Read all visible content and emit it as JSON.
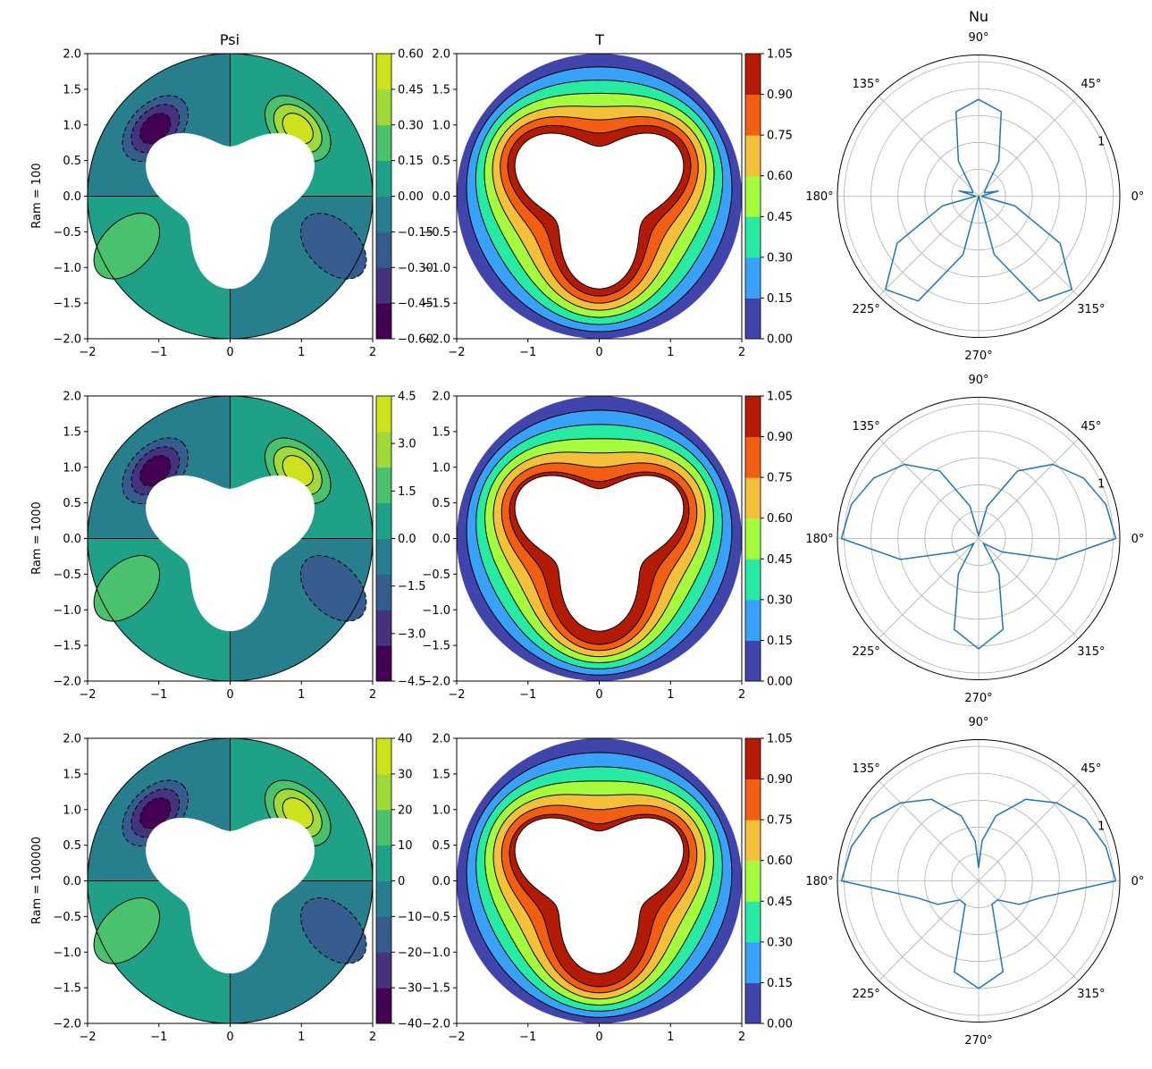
{
  "column_titles": {
    "psi": "Psi",
    "temperature": "T",
    "nusselt": "Nu"
  },
  "colors": {
    "viridis": [
      "#440154",
      "#46337e",
      "#365c8d",
      "#277f8e",
      "#1fa187",
      "#4ac16d",
      "#9fda3a",
      "#cde11d"
    ],
    "turbo": [
      "#4145ab",
      "#38a2fb",
      "#27eba3",
      "#a5fc3c",
      "#f4c03a",
      "#f35f12",
      "#b31b04"
    ],
    "polar_line": "#1f77b4",
    "grid": "#b0b0b0",
    "contour_line": "#000000"
  },
  "rows": [
    {
      "ylabel": "Ram = 100",
      "psi_colorbar_ticks": [
        "0.60",
        "0.45",
        "0.30",
        "0.15",
        "0.00",
        "−0.15",
        "−0.30",
        "−0.45",
        "−0.60"
      ],
      "t_colorbar_ticks": [
        "1.05",
        "0.90",
        "0.75",
        "0.60",
        "0.45",
        "0.30",
        "0.15",
        "0.00"
      ],
      "polar_radial_tick": "1"
    },
    {
      "ylabel": "Ram = 1000",
      "psi_colorbar_ticks": [
        "4.5",
        "3.0",
        "1.5",
        "0.0",
        "−1.5",
        "−3.0",
        "−4.5"
      ],
      "t_colorbar_ticks": [
        "1.05",
        "0.90",
        "0.75",
        "0.60",
        "0.45",
        "0.30",
        "0.15",
        "0.00"
      ],
      "polar_radial_tick": "1"
    },
    {
      "ylabel": "Ram = 100000",
      "psi_colorbar_ticks": [
        "40",
        "30",
        "20",
        "10",
        "0",
        "−10",
        "−20",
        "−30",
        "−40"
      ],
      "t_colorbar_ticks": [
        "1.05",
        "0.90",
        "0.75",
        "0.60",
        "0.45",
        "0.30",
        "0.15",
        "0.00"
      ],
      "polar_radial_tick": "1"
    }
  ],
  "cartesian_axes": {
    "x_ticks": [
      "−2",
      "−1",
      "0",
      "1",
      "2"
    ],
    "y_ticks": [
      "2.0",
      "1.5",
      "1.0",
      "0.5",
      "0.0",
      "−0.5",
      "−1.0",
      "−1.5",
      "−2.0"
    ],
    "xlim": [
      -2,
      2
    ],
    "ylim": [
      -2,
      2
    ]
  },
  "polar_axes": {
    "angle_labels": [
      "0°",
      "45°",
      "90°",
      "135°",
      "180°",
      "225°",
      "270°",
      "315°"
    ]
  },
  "chart_data": [
    {
      "type": "heatmap",
      "quantity": "Psi",
      "row_label": "Ram = 100",
      "xlim": [
        -2,
        2
      ],
      "ylim": [
        -2,
        2
      ],
      "levels": [
        -0.6,
        -0.45,
        -0.3,
        -0.15,
        0.0,
        0.15,
        0.3,
        0.45,
        0.6
      ],
      "extrema": {
        "max": 0.55,
        "min": -0.55
      }
    },
    {
      "type": "heatmap",
      "quantity": "T",
      "row_label": "Ram = 100",
      "xlim": [
        -2,
        2
      ],
      "ylim": [
        -2,
        2
      ],
      "levels": [
        0.0,
        0.15,
        0.3,
        0.45,
        0.6,
        0.75,
        0.9,
        1.05
      ]
    },
    {
      "type": "line",
      "polar": true,
      "quantity": "Nu",
      "row_label": "Ram = 100",
      "rmax": 1.05,
      "theta_deg": [
        0,
        15,
        30,
        45,
        60,
        75,
        90,
        105,
        120,
        135,
        150,
        165,
        180,
        195,
        210,
        225,
        240,
        255,
        270,
        285,
        300,
        315,
        330,
        345,
        360
      ],
      "r": [
        0.02,
        0.15,
        0.05,
        0.07,
        0.3,
        0.65,
        0.72,
        0.65,
        0.3,
        0.07,
        0.05,
        0.15,
        0.02,
        0.28,
        0.7,
        0.98,
        0.9,
        0.45,
        0.0,
        0.45,
        0.9,
        0.98,
        0.7,
        0.28,
        0.02
      ]
    },
    {
      "type": "heatmap",
      "quantity": "Psi",
      "row_label": "Ram = 1000",
      "xlim": [
        -2,
        2
      ],
      "ylim": [
        -2,
        2
      ],
      "levels": [
        -4.5,
        -3.0,
        -1.5,
        0.0,
        1.5,
        3.0,
        4.5
      ],
      "extrema": {
        "max": 4.2,
        "min": -4.2
      }
    },
    {
      "type": "heatmap",
      "quantity": "T",
      "row_label": "Ram = 1000",
      "xlim": [
        -2,
        2
      ],
      "ylim": [
        -2,
        2
      ],
      "levels": [
        0.0,
        0.15,
        0.3,
        0.45,
        0.6,
        0.75,
        0.9,
        1.05
      ]
    },
    {
      "type": "line",
      "polar": true,
      "quantity": "Nu",
      "row_label": "Ram = 1000",
      "rmax": 1.05,
      "theta_deg": [
        0,
        15,
        30,
        45,
        60,
        75,
        90,
        105,
        120,
        135,
        150,
        165,
        180,
        195,
        210,
        225,
        240,
        255,
        270,
        285,
        300,
        315,
        330,
        345,
        360
      ],
      "r": [
        1.02,
        0.98,
        0.9,
        0.78,
        0.58,
        0.25,
        0.02,
        0.25,
        0.58,
        0.78,
        0.9,
        0.98,
        1.02,
        0.6,
        0.2,
        0.05,
        0.3,
        0.7,
        0.82,
        0.7,
        0.3,
        0.05,
        0.2,
        0.6,
        1.02
      ]
    },
    {
      "type": "heatmap",
      "quantity": "Psi",
      "row_label": "Ram = 100000",
      "xlim": [
        -2,
        2
      ],
      "ylim": [
        -2,
        2
      ],
      "levels": [
        -40,
        -30,
        -20,
        -10,
        0,
        10,
        20,
        30,
        40
      ],
      "extrema": {
        "max": 38,
        "min": -38
      }
    },
    {
      "type": "heatmap",
      "quantity": "T",
      "row_label": "Ram = 100000",
      "xlim": [
        -2,
        2
      ],
      "ylim": [
        -2,
        2
      ],
      "levels": [
        0.0,
        0.15,
        0.3,
        0.45,
        0.6,
        0.75,
        0.9,
        1.05
      ]
    },
    {
      "type": "line",
      "polar": true,
      "quantity": "Nu",
      "row_label": "Ram = 100000",
      "rmax": 1.05,
      "theta_deg": [
        0,
        15,
        30,
        45,
        60,
        75,
        85,
        90,
        95,
        105,
        120,
        135,
        150,
        165,
        180,
        195,
        210,
        225,
        240,
        255,
        270,
        285,
        300,
        315,
        330,
        345,
        360
      ],
      "r": [
        1.02,
        0.98,
        0.92,
        0.82,
        0.7,
        0.5,
        0.3,
        0.1,
        0.3,
        0.5,
        0.7,
        0.82,
        0.92,
        0.98,
        1.02,
        0.48,
        0.35,
        0.2,
        0.2,
        0.7,
        0.8,
        0.7,
        0.2,
        0.2,
        0.35,
        0.48,
        1.02
      ]
    }
  ]
}
